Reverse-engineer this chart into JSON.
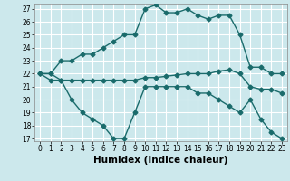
{
  "xlabel": "Humidex (Indice chaleur)",
  "ylabel": "",
  "bg_color": "#cce8ec",
  "grid_color": "#ffffff",
  "line_color": "#1a6b6b",
  "ylim": [
    17,
    27
  ],
  "xlim": [
    0,
    23
  ],
  "yticks": [
    17,
    18,
    19,
    20,
    21,
    22,
    23,
    24,
    25,
    26,
    27
  ],
  "xticks": [
    0,
    1,
    2,
    3,
    4,
    5,
    6,
    7,
    8,
    9,
    10,
    11,
    12,
    13,
    14,
    15,
    16,
    17,
    18,
    19,
    20,
    21,
    22,
    23
  ],
  "curve1_x": [
    0,
    1,
    2,
    3,
    4,
    5,
    6,
    7,
    8,
    9,
    10,
    11,
    12,
    13,
    14,
    15,
    16,
    17,
    18,
    19,
    20,
    21,
    22,
    23
  ],
  "curve1_y": [
    22,
    22,
    23,
    23,
    23.5,
    23.5,
    24,
    24.5,
    25,
    25,
    27,
    27.3,
    26.7,
    26.7,
    27,
    26.5,
    26.2,
    26.5,
    26.5,
    25,
    22.5,
    22.5,
    22,
    22
  ],
  "curve2_x": [
    0,
    1,
    2,
    3,
    4,
    5,
    6,
    7,
    8,
    9,
    10,
    11,
    12,
    13,
    14,
    15,
    16,
    17,
    18,
    19,
    20,
    21,
    22,
    23
  ],
  "curve2_y": [
    22,
    21.5,
    21.5,
    21.5,
    21.5,
    21.5,
    21.5,
    21.5,
    21.5,
    21.5,
    21.7,
    21.7,
    21.8,
    21.9,
    22,
    22,
    22,
    22.2,
    22.3,
    22,
    21,
    20.8,
    20.8,
    20.5
  ],
  "curve3_x": [
    0,
    1,
    2,
    3,
    4,
    5,
    6,
    7,
    8,
    9,
    10,
    11,
    12,
    13,
    14,
    15,
    16,
    17,
    18,
    19,
    20,
    21,
    22,
    23
  ],
  "curve3_y": [
    22,
    22,
    21.5,
    20,
    19.0,
    18.5,
    18,
    17,
    17,
    19,
    21,
    21,
    21,
    21,
    21,
    20.5,
    20.5,
    20,
    19.5,
    19,
    20,
    18.5,
    17.5,
    17
  ],
  "marker": "D",
  "markersize": 2.5,
  "linewidth": 1.0,
  "tick_fontsize": 5.5,
  "xlabel_fontsize": 7.5
}
